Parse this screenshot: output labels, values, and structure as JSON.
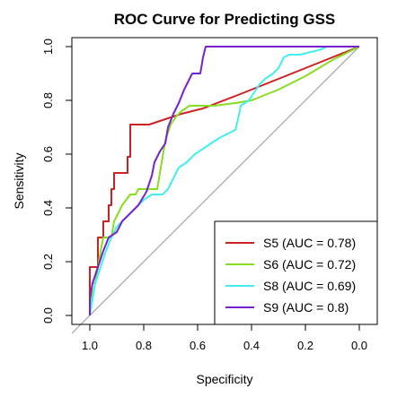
{
  "chart_data": {
    "type": "line",
    "title": "ROC Curve for Predicting GSS",
    "xlabel": "Specificity",
    "ylabel": "Sensitivity",
    "xlim": [
      1.0,
      0.0
    ],
    "ylim": [
      0.0,
      1.0
    ],
    "x_reversed": true,
    "x_ticks": [
      1.0,
      0.8,
      0.6,
      0.4,
      0.2,
      0.0
    ],
    "x_tick_labels": [
      "1.0",
      "0.8",
      "0.6",
      "0.4",
      "0.2",
      "0.0"
    ],
    "y_ticks": [
      0.0,
      0.2,
      0.4,
      0.6,
      0.8,
      1.0
    ],
    "y_tick_labels": [
      "0.0",
      "0.2",
      "0.4",
      "0.6",
      "0.8",
      "1.0"
    ],
    "grid": false,
    "legend_position": "bottom-right",
    "reference_line": {
      "from": [
        1.0,
        0.0
      ],
      "to": [
        0.0,
        1.0
      ],
      "color": "#999999"
    },
    "series": [
      {
        "name": "S5 (AUC = 0.78)",
        "color": "#cc2222",
        "points": [
          [
            1.0,
            0.0
          ],
          [
            1.0,
            0.18
          ],
          [
            0.97,
            0.18
          ],
          [
            0.97,
            0.29
          ],
          [
            0.95,
            0.29
          ],
          [
            0.95,
            0.35
          ],
          [
            0.93,
            0.35
          ],
          [
            0.93,
            0.41
          ],
          [
            0.92,
            0.41
          ],
          [
            0.92,
            0.47
          ],
          [
            0.91,
            0.47
          ],
          [
            0.91,
            0.53
          ],
          [
            0.86,
            0.53
          ],
          [
            0.86,
            0.59
          ],
          [
            0.85,
            0.59
          ],
          [
            0.85,
            0.71
          ],
          [
            0.8,
            0.71
          ],
          [
            0.78,
            0.71
          ],
          [
            0.66,
            0.75
          ],
          [
            0.58,
            0.77
          ],
          [
            0.45,
            0.82
          ],
          [
            0.35,
            0.86
          ],
          [
            0.25,
            0.9
          ],
          [
            0.15,
            0.94
          ],
          [
            0.05,
            0.98
          ],
          [
            0.0,
            1.0
          ]
        ]
      },
      {
        "name": "S6 (AUC = 0.72)",
        "color": "#88dd22",
        "points": [
          [
            1.0,
            0.0
          ],
          [
            0.99,
            0.12
          ],
          [
            0.98,
            0.12
          ],
          [
            0.97,
            0.18
          ],
          [
            0.96,
            0.24
          ],
          [
            0.95,
            0.29
          ],
          [
            0.92,
            0.29
          ],
          [
            0.91,
            0.35
          ],
          [
            0.88,
            0.41
          ],
          [
            0.85,
            0.45
          ],
          [
            0.83,
            0.45
          ],
          [
            0.82,
            0.47
          ],
          [
            0.75,
            0.47
          ],
          [
            0.74,
            0.53
          ],
          [
            0.73,
            0.59
          ],
          [
            0.72,
            0.65
          ],
          [
            0.7,
            0.71
          ],
          [
            0.68,
            0.74
          ],
          [
            0.66,
            0.76
          ],
          [
            0.63,
            0.78
          ],
          [
            0.6,
            0.78
          ],
          [
            0.54,
            0.78
          ],
          [
            0.46,
            0.79
          ],
          [
            0.4,
            0.8
          ],
          [
            0.3,
            0.84
          ],
          [
            0.2,
            0.89
          ],
          [
            0.1,
            0.95
          ],
          [
            0.0,
            1.0
          ]
        ]
      },
      {
        "name": "S8 (AUC = 0.69)",
        "color": "#44eeee",
        "points": [
          [
            1.0,
            0.0
          ],
          [
            0.99,
            0.06
          ],
          [
            0.98,
            0.12
          ],
          [
            0.96,
            0.18
          ],
          [
            0.94,
            0.24
          ],
          [
            0.92,
            0.29
          ],
          [
            0.9,
            0.33
          ],
          [
            0.88,
            0.35
          ],
          [
            0.85,
            0.38
          ],
          [
            0.82,
            0.41
          ],
          [
            0.8,
            0.43
          ],
          [
            0.77,
            0.45
          ],
          [
            0.73,
            0.45
          ],
          [
            0.71,
            0.47
          ],
          [
            0.69,
            0.51
          ],
          [
            0.67,
            0.55
          ],
          [
            0.64,
            0.57
          ],
          [
            0.61,
            0.6
          ],
          [
            0.58,
            0.62
          ],
          [
            0.55,
            0.64
          ],
          [
            0.52,
            0.66
          ],
          [
            0.48,
            0.68
          ],
          [
            0.46,
            0.69
          ],
          [
            0.45,
            0.73
          ],
          [
            0.44,
            0.78
          ],
          [
            0.41,
            0.8
          ],
          [
            0.39,
            0.83
          ],
          [
            0.37,
            0.86
          ],
          [
            0.35,
            0.88
          ],
          [
            0.32,
            0.9
          ],
          [
            0.3,
            0.92
          ],
          [
            0.28,
            0.96
          ],
          [
            0.26,
            0.97
          ],
          [
            0.22,
            0.97
          ],
          [
            0.18,
            0.98
          ],
          [
            0.14,
            0.99
          ],
          [
            0.12,
            1.0
          ],
          [
            0.0,
            1.0
          ]
        ]
      },
      {
        "name": "S9 (AUC = 0.8)",
        "color": "#7722cc",
        "points": [
          [
            1.0,
            0.0
          ],
          [
            1.0,
            0.06
          ],
          [
            0.99,
            0.12
          ],
          [
            0.97,
            0.18
          ],
          [
            0.95,
            0.24
          ],
          [
            0.93,
            0.29
          ],
          [
            0.9,
            0.31
          ],
          [
            0.88,
            0.35
          ],
          [
            0.85,
            0.38
          ],
          [
            0.82,
            0.41
          ],
          [
            0.79,
            0.46
          ],
          [
            0.77,
            0.52
          ],
          [
            0.76,
            0.57
          ],
          [
            0.74,
            0.61
          ],
          [
            0.72,
            0.64
          ],
          [
            0.71,
            0.7
          ],
          [
            0.69,
            0.75
          ],
          [
            0.67,
            0.79
          ],
          [
            0.65,
            0.84
          ],
          [
            0.64,
            0.86
          ],
          [
            0.62,
            0.9
          ],
          [
            0.59,
            0.9
          ],
          [
            0.58,
            0.96
          ],
          [
            0.57,
            1.0
          ],
          [
            0.0,
            1.0
          ]
        ]
      }
    ]
  }
}
